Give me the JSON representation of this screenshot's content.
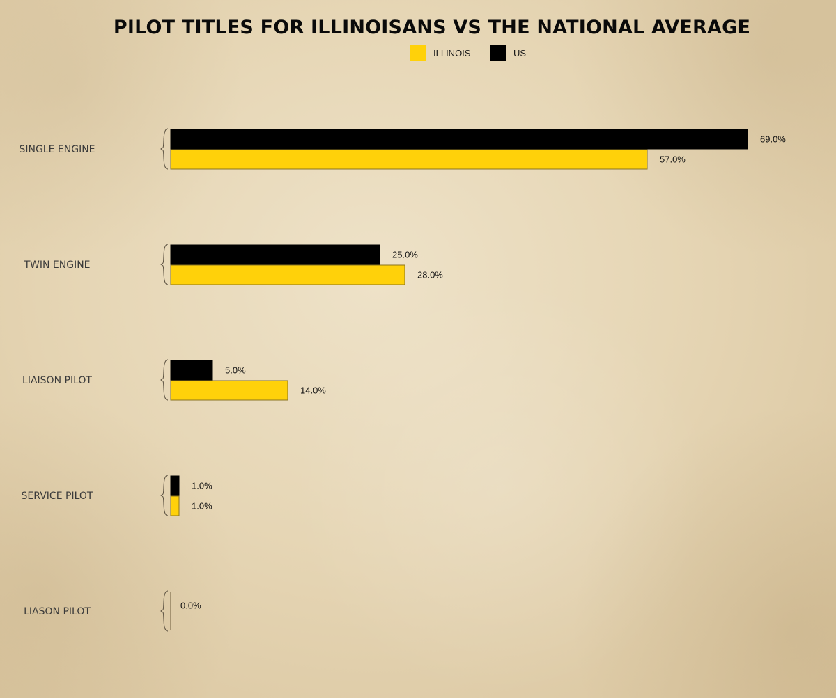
{
  "chart_data": {
    "type": "bar",
    "orientation": "horizontal",
    "title": "PILOT TITLES FOR ILLINOISANS VS THE NATIONAL AVERAGE",
    "categories": [
      "SINGLE ENGINE",
      "TWIN ENGINE",
      "LIAISON PILOT",
      "SERVICE PILOT",
      "LIASON PILOT"
    ],
    "series": [
      {
        "name": "US",
        "color": "#000000",
        "values": [
          69.0,
          25.0,
          5.0,
          1.0,
          null
        ],
        "labels": [
          "69.0%",
          "25.0%",
          "5.0%",
          "1.0%",
          null
        ]
      },
      {
        "name": "ILLINOIS",
        "color": "#ffd10a",
        "values": [
          57.0,
          28.0,
          14.0,
          1.0,
          0.0
        ],
        "labels": [
          "57.0%",
          "28.0%",
          "14.0%",
          "1.0%",
          "0.0%"
        ]
      }
    ],
    "legend": [
      {
        "name": "ILLINOIS",
        "color": "#ffd10a"
      },
      {
        "name": "US",
        "color": "#000000"
      }
    ],
    "legend_position": "top-center",
    "xlim": [
      0,
      69
    ],
    "grid": false
  }
}
